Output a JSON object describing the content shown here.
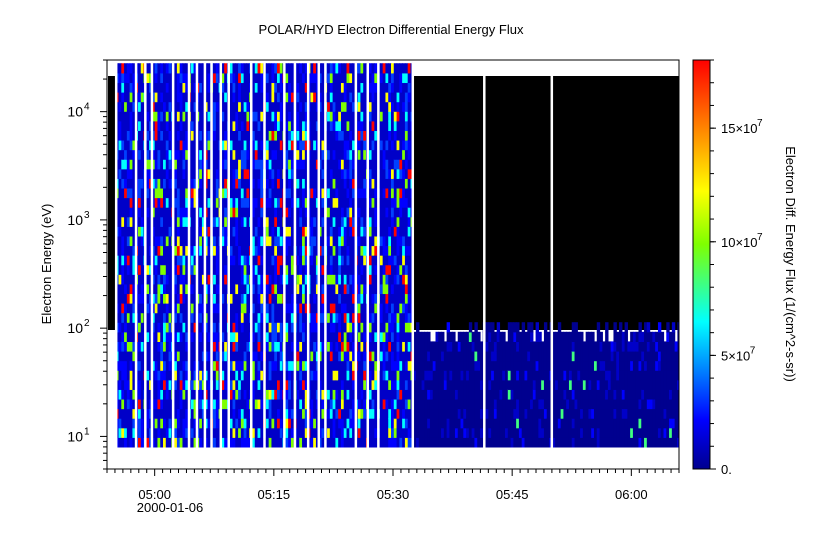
{
  "chart_data": {
    "type": "heatmap",
    "title": "POLAR/HYD  Electron Differential Energy Flux",
    "ylabel": "Electron Energy (eV)",
    "y_scale": "log",
    "ylim": [
      5,
      30000
    ],
    "y_ticks": [
      {
        "value": 10,
        "base": "10",
        "exp": "1"
      },
      {
        "value": 100,
        "base": "10",
        "exp": "2"
      },
      {
        "value": 1000,
        "base": "10",
        "exp": "3"
      },
      {
        "value": 10000,
        "base": "10",
        "exp": "4"
      }
    ],
    "x_ticks": [
      "05:00",
      "05:15",
      "05:30",
      "05:45",
      "06:00"
    ],
    "x_date_label": "2000-01-06",
    "xlim": [
      "04:54",
      "06:06"
    ],
    "energy_range_ev": [
      8,
      28000
    ],
    "colorbar": {
      "label": "Electron Diff. Energy Flux (1/(cm^2-s-sr))",
      "range": [
        0,
        180000000
      ],
      "ticks": [
        {
          "value": 0,
          "label": "0."
        },
        {
          "value": 50000000,
          "label": "5×10",
          "exp": "7"
        },
        {
          "value": 100000000,
          "label": "10×10",
          "exp": "7"
        },
        {
          "value": 150000000,
          "label": "15×10",
          "exp": "7"
        }
      ],
      "colors": [
        "#00008f",
        "#0000ff",
        "#00ffff",
        "#7fff00",
        "#ffff00",
        "#ff7f00",
        "#ff0000"
      ]
    },
    "data_gaps": [
      [
        "04:55:00",
        "04:55:10"
      ],
      [
        "04:57:30",
        "04:57:40"
      ],
      [
        "04:58:40",
        "04:58:50"
      ],
      [
        "04:59:30",
        "04:59:40"
      ],
      [
        "05:02:10",
        "05:02:20"
      ],
      [
        "05:04:10",
        "05:04:20"
      ],
      [
        "05:05:10",
        "05:05:20"
      ],
      [
        "05:06:10",
        "05:06:20"
      ],
      [
        "05:07:00",
        "05:07:10"
      ],
      [
        "05:08:10",
        "05:08:20"
      ],
      [
        "05:09:10",
        "05:09:20"
      ],
      [
        "05:12:00",
        "05:12:10"
      ],
      [
        "05:13:40",
        "05:13:50"
      ],
      [
        "05:16:10",
        "05:16:20"
      ],
      [
        "05:17:30",
        "05:17:40"
      ],
      [
        "05:19:10",
        "05:19:20"
      ],
      [
        "05:20:30",
        "05:20:40"
      ],
      [
        "05:21:20",
        "05:21:30"
      ],
      [
        "05:25:10",
        "05:25:20"
      ],
      [
        "05:26:40",
        "05:26:50"
      ],
      [
        "05:28:00",
        "05:28:10"
      ],
      [
        "05:32:20",
        "05:32:30"
      ],
      [
        "05:41:20",
        "05:41:30"
      ],
      [
        "05:49:50",
        "05:50:00"
      ]
    ]
  }
}
